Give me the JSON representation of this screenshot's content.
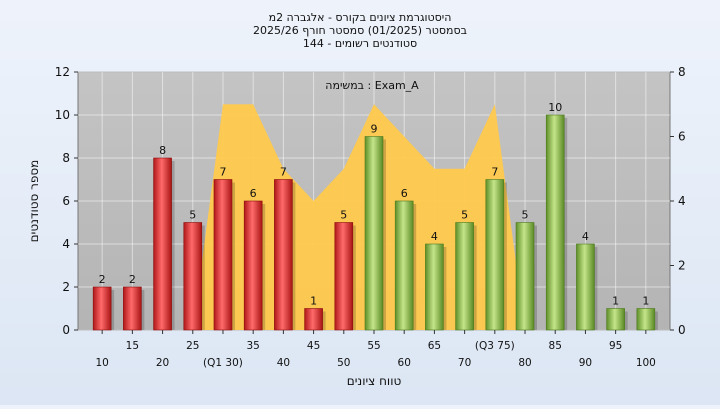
{
  "chart_data": {
    "type": "bar",
    "title_lines": [
      "היסטוגרמת ציונים בקורס - אלגברה 2מ",
      "בסמסטר  (01/2025)  סמסטר חורף 2025/26",
      "סטודנטים רשומים - 144"
    ],
    "annotation": "במשימה : Exam_A",
    "xlabel": "טווח ציונים",
    "ylabel": "מספר סטודנטים",
    "categories": [
      "10",
      "15",
      "20",
      "25",
      "(Q1 30)",
      "35",
      "40",
      "45",
      "50",
      "55",
      "60",
      "65",
      "70",
      "(Q3 75)",
      "80",
      "85",
      "90",
      "95",
      "100"
    ],
    "series": [
      {
        "type": "bar",
        "values": [
          2,
          2,
          8,
          5,
          7,
          6,
          7,
          1,
          5,
          9,
          6,
          4,
          5,
          7,
          5,
          10,
          4,
          1,
          1
        ],
        "colors": [
          "#e03a3a",
          "#e03a3a",
          "#e03a3a",
          "#e03a3a",
          "#e03a3a",
          "#e03a3a",
          "#e03a3a",
          "#e03a3a",
          "#e03a3a",
          "#8cc04a",
          "#8cc04a",
          "#8cc04a",
          "#8cc04a",
          "#8cc04a",
          "#8cc04a",
          "#8cc04a",
          "#8cc04a",
          "#8cc04a",
          "#8cc04a"
        ]
      },
      {
        "type": "area",
        "axis": "right",
        "values": [
          0,
          0,
          0,
          0,
          7,
          7,
          5,
          4,
          5,
          7,
          6,
          5,
          5,
          7,
          0,
          0,
          0,
          0,
          0
        ],
        "color": "#ffc94d"
      }
    ],
    "ylim": [
      0,
      12
    ],
    "yticks": [
      0,
      2,
      4,
      6,
      8,
      10,
      12
    ],
    "y2lim": [
      0,
      8
    ],
    "y2ticks": [
      0,
      2,
      4,
      6,
      8
    ],
    "grid": true
  }
}
